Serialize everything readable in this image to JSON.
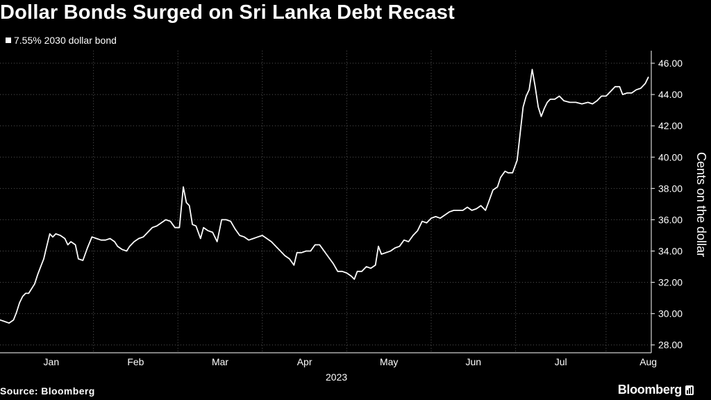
{
  "header": {
    "title": "Dollar Bonds Surged on Sri Lanka Debt Recast"
  },
  "footer": {
    "source": "Source: Bloomberg",
    "brand": "Bloomberg"
  },
  "colors": {
    "background": "#000000",
    "line": "#ffffff",
    "grid": "#555555"
  },
  "chart_data": {
    "type": "line",
    "title": "Dollar Bonds Surged on Sri Lanka Debt Recast",
    "ylabel": "Cents on the dollar",
    "xlabel": "2023",
    "ylim": [
      27.5,
      46.8
    ],
    "yticks": [
      28,
      30,
      32,
      34,
      36,
      38,
      40,
      42,
      44,
      46
    ],
    "ytick_labels": [
      "28.00",
      "30.00",
      "32.00",
      "34.00",
      "36.00",
      "38.00",
      "40.00",
      "42.00",
      "44.00",
      "46.00"
    ],
    "xlim": [
      0,
      216
    ],
    "month_ticks": [
      17,
      45,
      73,
      101,
      129,
      157,
      186,
      215
    ],
    "month_labels": [
      "Jan",
      "Feb",
      "Mar",
      "Apr",
      "May",
      "Jun",
      "Jul",
      "Aug"
    ],
    "month_grid": [
      0,
      31,
      59,
      87,
      115,
      143,
      171,
      201
    ],
    "grid": true,
    "legend_position": "top-left",
    "series": [
      {
        "name": "7.55% 2030 dollar bond",
        "points": [
          [
            0,
            29.6
          ],
          [
            1.5,
            29.5
          ],
          [
            3,
            29.4
          ],
          [
            4.5,
            29.6
          ],
          [
            5.5,
            30.1
          ],
          [
            6.5,
            30.7
          ],
          [
            7.5,
            31.1
          ],
          [
            8.5,
            31.3
          ],
          [
            9.5,
            31.3
          ],
          [
            10.5,
            31.6
          ],
          [
            11.5,
            31.9
          ],
          [
            12.5,
            32.5
          ],
          [
            13.5,
            33.0
          ],
          [
            14.5,
            33.5
          ],
          [
            15.5,
            34.3
          ],
          [
            16.5,
            35.1
          ],
          [
            17.5,
            34.9
          ],
          [
            18.5,
            35.1
          ],
          [
            20,
            35.0
          ],
          [
            21.5,
            34.8
          ],
          [
            22.5,
            34.4
          ],
          [
            23.5,
            34.6
          ],
          [
            25,
            34.4
          ],
          [
            26,
            33.5
          ],
          [
            27.5,
            33.4
          ],
          [
            29,
            34.2
          ],
          [
            30.5,
            34.9
          ],
          [
            32,
            34.8
          ],
          [
            33.5,
            34.7
          ],
          [
            35,
            34.7
          ],
          [
            36.5,
            34.8
          ],
          [
            38,
            34.6
          ],
          [
            39,
            34.3
          ],
          [
            40.5,
            34.1
          ],
          [
            42,
            34.0
          ],
          [
            43,
            34.3
          ],
          [
            44.5,
            34.6
          ],
          [
            46,
            34.8
          ],
          [
            47.5,
            34.9
          ],
          [
            49,
            35.2
          ],
          [
            50.5,
            35.5
          ],
          [
            52,
            35.6
          ],
          [
            53.5,
            35.8
          ],
          [
            55,
            36.0
          ],
          [
            56.5,
            35.9
          ],
          [
            58,
            35.5
          ],
          [
            59.5,
            35.5
          ],
          [
            60.8,
            38.1
          ],
          [
            61.8,
            37.1
          ],
          [
            62.8,
            36.9
          ],
          [
            63.8,
            35.7
          ],
          [
            65,
            35.6
          ],
          [
            66.5,
            34.8
          ],
          [
            67.5,
            35.5
          ],
          [
            69,
            35.3
          ],
          [
            70.5,
            35.2
          ],
          [
            72,
            34.6
          ],
          [
            73.5,
            36.0
          ],
          [
            75,
            36.0
          ],
          [
            76.5,
            35.9
          ],
          [
            78,
            35.4
          ],
          [
            79.5,
            35.0
          ],
          [
            81,
            34.9
          ],
          [
            82.5,
            34.7
          ],
          [
            84,
            34.8
          ],
          [
            85.5,
            34.9
          ],
          [
            87,
            35.0
          ],
          [
            88.5,
            34.8
          ],
          [
            90,
            34.6
          ],
          [
            91.5,
            34.3
          ],
          [
            93,
            34.0
          ],
          [
            94.5,
            33.7
          ],
          [
            96,
            33.5
          ],
          [
            97.5,
            33.1
          ],
          [
            98.5,
            33.9
          ],
          [
            100,
            33.9
          ],
          [
            101.5,
            34.0
          ],
          [
            103,
            34.0
          ],
          [
            104.5,
            34.4
          ],
          [
            106,
            34.4
          ],
          [
            107.5,
            34.0
          ],
          [
            109,
            33.6
          ],
          [
            110.5,
            33.2
          ],
          [
            112,
            32.7
          ],
          [
            113.5,
            32.7
          ],
          [
            115,
            32.6
          ],
          [
            116.5,
            32.4
          ],
          [
            117.5,
            32.2
          ],
          [
            118.5,
            32.7
          ],
          [
            120,
            32.7
          ],
          [
            121.5,
            33.0
          ],
          [
            123,
            32.9
          ],
          [
            124.5,
            33.1
          ],
          [
            125.5,
            34.3
          ],
          [
            126.5,
            33.8
          ],
          [
            128,
            33.9
          ],
          [
            129.5,
            34.0
          ],
          [
            131,
            34.2
          ],
          [
            132.5,
            34.3
          ],
          [
            134,
            34.7
          ],
          [
            135.5,
            34.6
          ],
          [
            137,
            35.0
          ],
          [
            138.5,
            35.3
          ],
          [
            140,
            35.9
          ],
          [
            141.5,
            35.8
          ],
          [
            143,
            36.1
          ],
          [
            144.5,
            36.2
          ],
          [
            146,
            36.1
          ],
          [
            147.5,
            36.3
          ],
          [
            149,
            36.5
          ],
          [
            150.5,
            36.6
          ],
          [
            152,
            36.6
          ],
          [
            153.5,
            36.6
          ],
          [
            155,
            36.8
          ],
          [
            156.5,
            36.6
          ],
          [
            158,
            36.7
          ],
          [
            159.5,
            36.9
          ],
          [
            161,
            36.6
          ],
          [
            162,
            37.1
          ],
          [
            163.5,
            37.9
          ],
          [
            165,
            38.1
          ],
          [
            166,
            38.7
          ],
          [
            167.5,
            39.1
          ],
          [
            168.5,
            39.0
          ],
          [
            170,
            39.0
          ],
          [
            171.5,
            39.8
          ],
          [
            172.5,
            41.5
          ],
          [
            173.5,
            43.2
          ],
          [
            174.5,
            43.9
          ],
          [
            175.5,
            44.3
          ],
          [
            176.5,
            45.6
          ],
          [
            177.5,
            44.5
          ],
          [
            178.5,
            43.2
          ],
          [
            179.5,
            42.6
          ],
          [
            180.5,
            43.1
          ],
          [
            181.5,
            43.5
          ],
          [
            182.5,
            43.7
          ],
          [
            184,
            43.7
          ],
          [
            185.5,
            43.9
          ],
          [
            187,
            43.6
          ],
          [
            189,
            43.5
          ],
          [
            191,
            43.5
          ],
          [
            193,
            43.4
          ],
          [
            195,
            43.5
          ],
          [
            196.5,
            43.4
          ],
          [
            198,
            43.6
          ],
          [
            199.5,
            43.9
          ],
          [
            201,
            43.9
          ],
          [
            202.5,
            44.2
          ],
          [
            204,
            44.5
          ],
          [
            205.5,
            44.5
          ],
          [
            206.5,
            44.0
          ],
          [
            208,
            44.1
          ],
          [
            209.5,
            44.1
          ],
          [
            211,
            44.3
          ],
          [
            212.5,
            44.4
          ],
          [
            214,
            44.7
          ],
          [
            215,
            45.1
          ]
        ]
      }
    ]
  }
}
